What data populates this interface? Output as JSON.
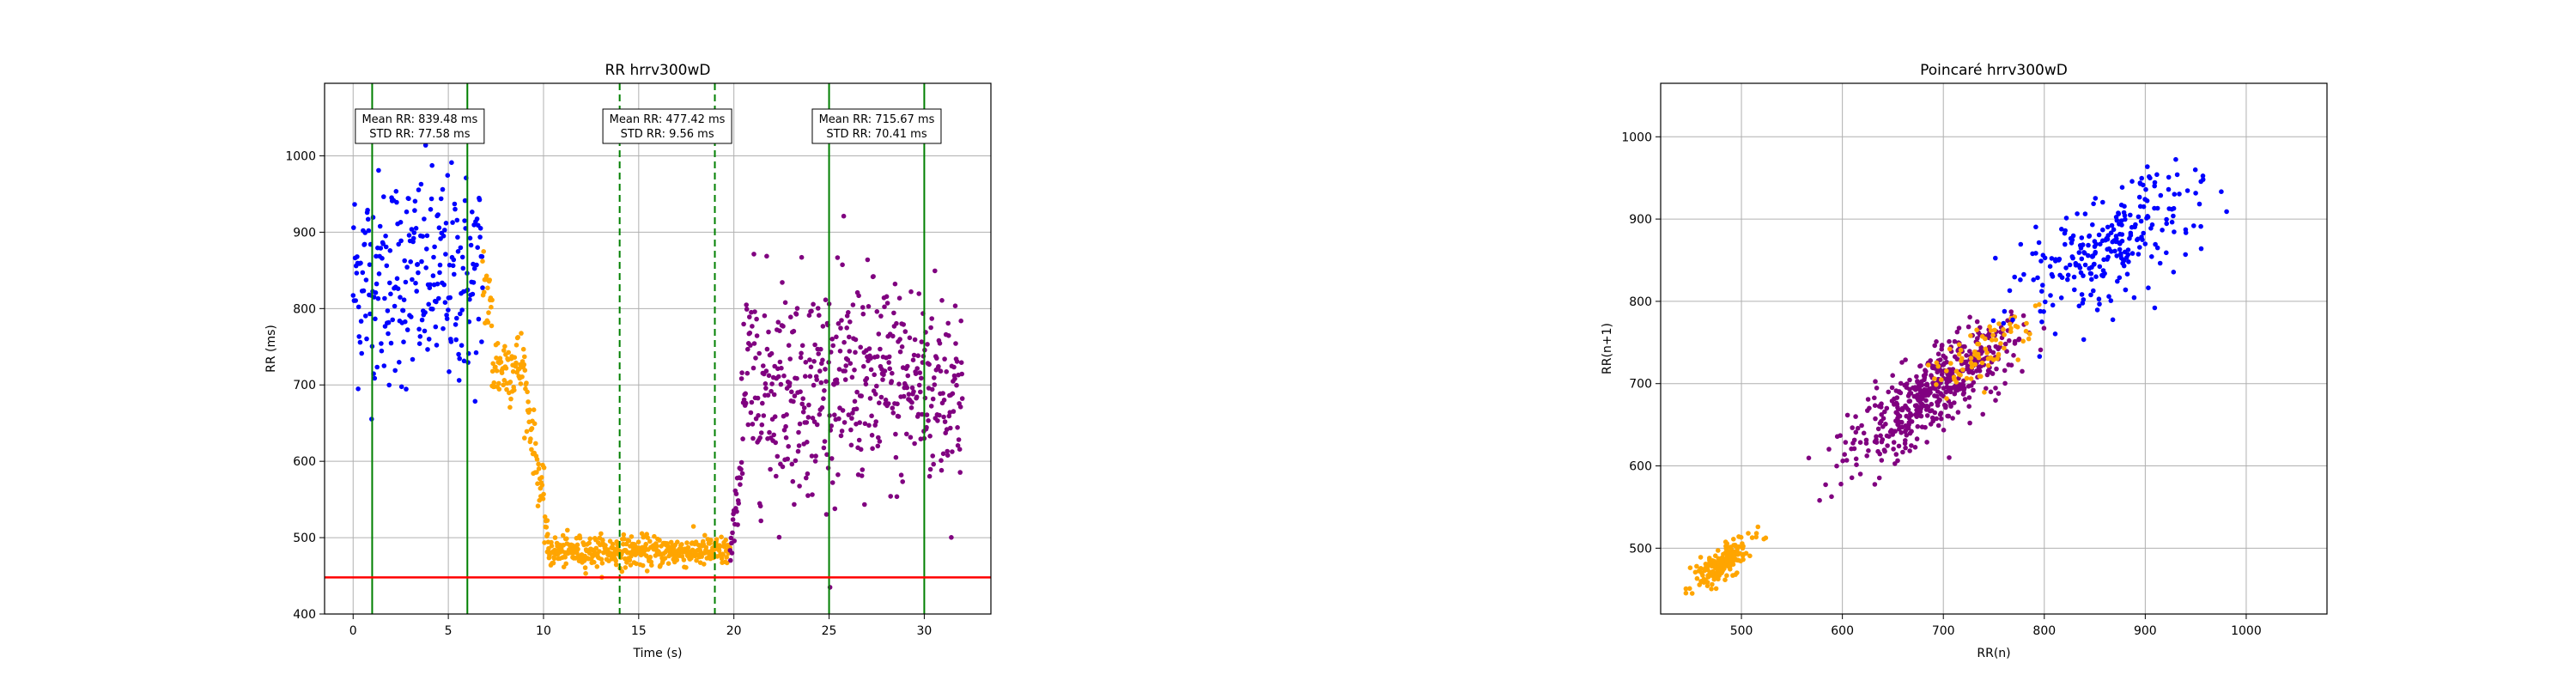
{
  "chart_data": [
    {
      "type": "scatter",
      "title": "RR hrrv300wD",
      "xlabel": "Time (s)",
      "ylabel": "RR (ms)",
      "xlim": [
        -1.5,
        33.5
      ],
      "ylim": [
        400,
        1095
      ],
      "xticks": [
        0,
        5,
        10,
        15,
        20,
        25,
        30
      ],
      "yticks": [
        400,
        500,
        600,
        700,
        800,
        900,
        1000
      ],
      "grid": true,
      "threshold_line": {
        "y": 448,
        "color": "#ff0000"
      },
      "vertical_lines": [
        {
          "x": 1,
          "style": "solid",
          "color": "#008000"
        },
        {
          "x": 6,
          "style": "solid",
          "color": "#008000"
        },
        {
          "x": 14,
          "style": "dashed",
          "color": "#008000"
        },
        {
          "x": 19,
          "style": "dashed",
          "color": "#008000"
        },
        {
          "x": 25,
          "style": "solid",
          "color": "#008000"
        },
        {
          "x": 30,
          "style": "solid",
          "color": "#008000"
        }
      ],
      "annotations": [
        {
          "x": 3.5,
          "lines": [
            "Mean RR: 839.48 ms",
            "STD RR: 77.58 ms"
          ]
        },
        {
          "x": 16.5,
          "lines": [
            "Mean RR: 477.42 ms",
            "STD RR: 9.56 ms"
          ]
        },
        {
          "x": 27.5,
          "lines": [
            "Mean RR: 715.67 ms",
            "STD RR: 70.41 ms"
          ]
        }
      ],
      "series": [
        {
          "color": "#0000ff",
          "segments": [
            {
              "t": [
                0,
                6.8
              ],
              "mean": 839,
              "std": 70,
              "points": 260
            }
          ]
        },
        {
          "color": "#ffa500",
          "segments": [
            {
              "t": [
                6.8,
                7.3
              ],
              "from": 850,
              "to": 780,
              "std": 30,
              "points": 20
            },
            {
              "t": [
                7.3,
                9.0
              ],
              "mean": 725,
              "std": 25,
              "points": 70
            },
            {
              "t": [
                9.0,
                10.2
              ],
              "from": 700,
              "to": 510,
              "std": 20,
              "points": 50
            },
            {
              "t": [
                10.2,
                19.8
              ],
              "mean": 482,
              "std": 10,
              "points": 420
            }
          ]
        },
        {
          "color": "#800080",
          "segments": [
            {
              "t": [
                19.8,
                20.4
              ],
              "from": 470,
              "to": 600,
              "std": 15,
              "points": 25
            },
            {
              "t": [
                20.4,
                32.0
              ],
              "mean": 700,
              "std": 70,
              "points": 500
            }
          ]
        }
      ]
    },
    {
      "type": "scatter",
      "title": "Poincaré hrrv300wD",
      "xlabel": "RR(n)",
      "ylabel": "RR(n+1)",
      "xlim": [
        420,
        1080
      ],
      "ylim": [
        420,
        1065
      ],
      "xticks": [
        500,
        600,
        700,
        800,
        900,
        1000
      ],
      "yticks": [
        500,
        600,
        700,
        800,
        900,
        1000
      ],
      "grid": true,
      "series": [
        {
          "color": "#800080",
          "center": [
            690,
            690
          ],
          "spread_along": 55,
          "spread_across": 18,
          "points": 500
        },
        {
          "color": "#ffa500",
          "center": [
            480,
            480
          ],
          "spread_along": 20,
          "spread_across": 7,
          "points": 200
        },
        {
          "color": "#ffa500",
          "center": [
            740,
            740
          ],
          "spread_along": 30,
          "spread_across": 12,
          "points": 80
        },
        {
          "color": "#0000ff",
          "center": [
            865,
            865
          ],
          "spread_along": 60,
          "spread_across": 25,
          "points": 260
        }
      ]
    }
  ]
}
